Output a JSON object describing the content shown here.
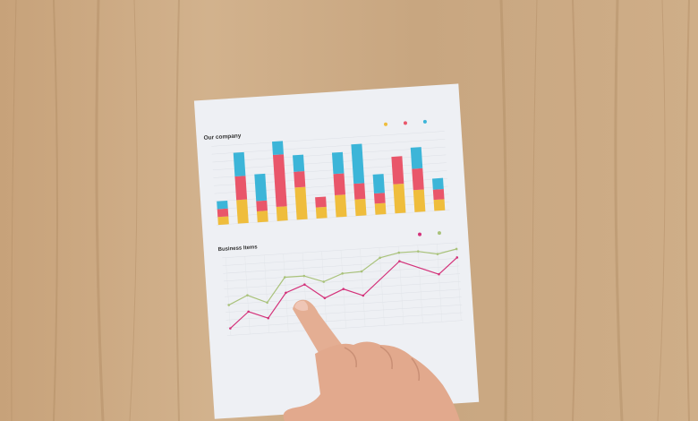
{
  "photo": {
    "surface": "wooden table",
    "colors": {
      "wood": "#c9a883",
      "paper": "#eef0f4",
      "yellow": "#efbd3c",
      "red": "#e9566a",
      "blue": "#3cb5d8",
      "pink": "#d4327a",
      "green": "#a9c27a",
      "skin": "#e3ad92"
    }
  },
  "chart_data": [
    {
      "type": "bar",
      "title": "Our company",
      "stacked": true,
      "ylim": [
        0,
        100
      ],
      "grid": true,
      "legend": "top-right",
      "series": [
        {
          "color": "#efbd3c",
          "values": [
            10,
            30,
            14,
            18,
            41,
            14,
            28,
            21,
            14,
            37,
            28,
            14
          ]
        },
        {
          "color": "#e9566a",
          "values": [
            10,
            30,
            13,
            66,
            20,
            13,
            27,
            20,
            13,
            35,
            27,
            13
          ]
        },
        {
          "color": "#3cb5d8",
          "values": [
            10,
            30,
            34,
            17,
            21,
            0,
            27,
            50,
            24,
            0,
            27,
            14
          ]
        }
      ]
    },
    {
      "type": "line",
      "title": "Business Items",
      "ylim": [
        0,
        100
      ],
      "grid": true,
      "legend": "top-right",
      "series": [
        {
          "color": "#d4327a",
          "x": [
            0,
            1,
            2,
            3,
            4,
            5,
            6,
            7,
            9,
            11,
            12
          ],
          "values": [
            9,
            29,
            19,
            50,
            59,
            40,
            50,
            40,
            81,
            61,
            81
          ]
        },
        {
          "color": "#a9c27a",
          "x": [
            0,
            1,
            2,
            3,
            4,
            5,
            6,
            7,
            8,
            9,
            10,
            11,
            12
          ],
          "values": [
            39,
            50,
            39,
            70,
            70,
            61,
            70,
            71,
            87,
            92,
            92,
            87,
            92
          ]
        }
      ]
    }
  ]
}
